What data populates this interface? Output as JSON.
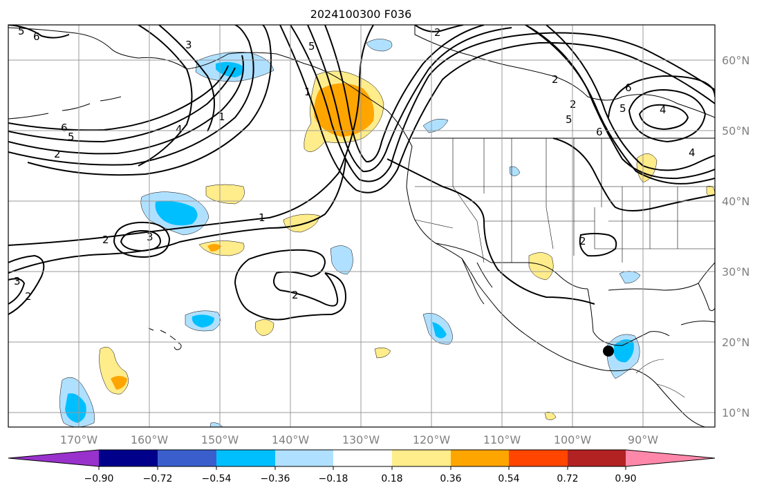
{
  "title": "2024100300 F036",
  "map": {
    "lat_labels": [
      "60°N",
      "50°N",
      "40°N",
      "30°N",
      "20°N",
      "10°N"
    ],
    "lon_labels": [
      "170°W",
      "160°W",
      "150°W",
      "140°W",
      "130°W",
      "120°W",
      "110°W",
      "100°W",
      "90°W"
    ],
    "contour_labels": [
      "6",
      "5",
      "3",
      "4",
      "1",
      "6",
      "5",
      "2",
      "1",
      "2",
      "3",
      "2",
      "3",
      "2",
      "1",
      "5",
      "2",
      "2",
      "4",
      "6",
      "5",
      "4",
      "6",
      "5",
      "2",
      "2"
    ],
    "marker": "storm-center"
  },
  "colorbar": {
    "ticks": [
      "−0.90",
      "−0.72",
      "−0.54",
      "−0.36",
      "−0.18",
      "0.18",
      "0.36",
      "0.54",
      "0.72",
      "0.90"
    ],
    "colors": [
      "#9932cc",
      "#00008b",
      "#3a5fcd",
      "#00bfff",
      "#b0e0ff",
      "#ffffff",
      "#ffec8b",
      "#ffa500",
      "#ff4500",
      "#b22222",
      "#ff88aa"
    ]
  }
}
